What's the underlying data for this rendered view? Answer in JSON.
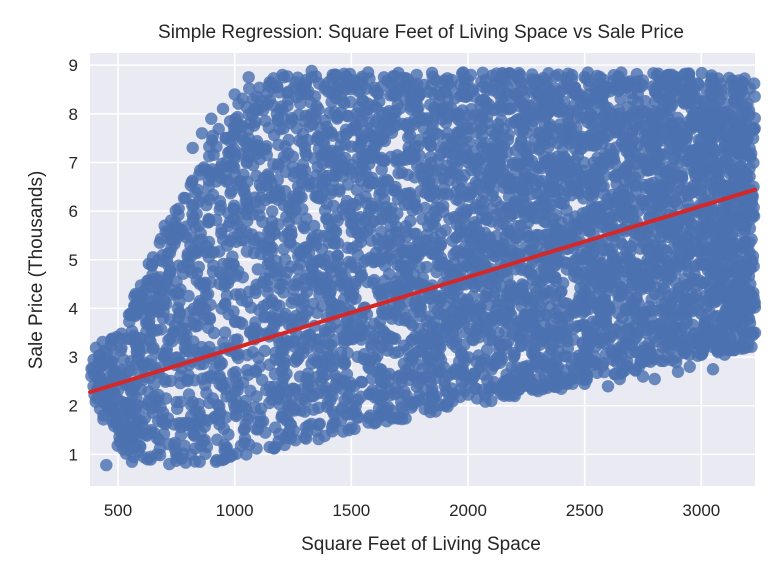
{
  "chart_data": {
    "type": "scatter",
    "title": "Simple Regression: Square Feet of Living Space vs Sale Price",
    "xlabel": "Square Feet of Living Space",
    "ylabel": "Sale Price (Thousands)",
    "xlim": [
      380,
      3230
    ],
    "ylim": [
      0.35,
      9.25
    ],
    "xticks": [
      500,
      1000,
      1500,
      2000,
      2500,
      3000
    ],
    "yticks": [
      1,
      2,
      3,
      4,
      5,
      6,
      7,
      8,
      9
    ],
    "grid": true,
    "background": "#eaeaf2",
    "point_color": "#4c72b0",
    "line_color": "#d62728",
    "regression_line": {
      "x": [
        380,
        3230
      ],
      "y": [
        2.28,
        6.44
      ]
    },
    "point_cloud": [
      {
        "x": 400,
        "y_min": 2.1,
        "y_max": 3.2
      },
      {
        "x": 500,
        "y_min": 1.0,
        "y_max": 3.6
      },
      {
        "x": 600,
        "y_min": 0.9,
        "y_max": 4.6
      },
      {
        "x": 700,
        "y_min": 0.85,
        "y_max": 5.6
      },
      {
        "x": 800,
        "y_min": 0.85,
        "y_max": 6.6
      },
      {
        "x": 900,
        "y_min": 0.85,
        "y_max": 7.6
      },
      {
        "x": 1000,
        "y_min": 0.9,
        "y_max": 8.3
      },
      {
        "x": 1100,
        "y_min": 1.0,
        "y_max": 8.7
      },
      {
        "x": 1200,
        "y_min": 1.1,
        "y_max": 8.8
      },
      {
        "x": 1400,
        "y_min": 1.35,
        "y_max": 8.85
      },
      {
        "x": 1600,
        "y_min": 1.6,
        "y_max": 8.85
      },
      {
        "x": 1800,
        "y_min": 1.8,
        "y_max": 8.85
      },
      {
        "x": 2000,
        "y_min": 2.0,
        "y_max": 8.85
      },
      {
        "x": 2200,
        "y_min": 2.2,
        "y_max": 8.85
      },
      {
        "x": 2400,
        "y_min": 2.4,
        "y_max": 8.85
      },
      {
        "x": 2600,
        "y_min": 2.6,
        "y_max": 8.85
      },
      {
        "x": 2800,
        "y_min": 2.8,
        "y_max": 8.85
      },
      {
        "x": 3000,
        "y_min": 3.0,
        "y_max": 8.85
      },
      {
        "x": 3230,
        "y_min": 3.2,
        "y_max": 8.7
      }
    ],
    "sample_points": [
      [
        450,
        0.78
      ],
      [
        560,
        0.85
      ],
      [
        640,
        0.95
      ],
      [
        720,
        0.8
      ],
      [
        790,
        0.83
      ],
      [
        850,
        0.85
      ],
      [
        920,
        0.85
      ],
      [
        980,
        0.95
      ],
      [
        420,
        2.45
      ],
      [
        430,
        2.9
      ],
      [
        395,
        2.4
      ],
      [
        470,
        3.25
      ],
      [
        520,
        2.5
      ],
      [
        440,
        2.3
      ],
      [
        460,
        1.9
      ],
      [
        500,
        1.6
      ],
      [
        505,
        1.5
      ],
      [
        555,
        3.9
      ],
      [
        570,
        4.05
      ],
      [
        590,
        4.2
      ],
      [
        620,
        4.3
      ],
      [
        650,
        5.05
      ],
      [
        700,
        5.7
      ],
      [
        730,
        5.4
      ],
      [
        760,
        6.05
      ],
      [
        1060,
        8.75
      ],
      [
        1150,
        8.65
      ],
      [
        1210,
        8.75
      ],
      [
        1330,
        8.88
      ],
      [
        1420,
        8.8
      ],
      [
        1640,
        8.75
      ],
      [
        1780,
        8.8
      ],
      [
        1980,
        8.85
      ],
      [
        1000,
        8.4
      ],
      [
        950,
        8.1
      ],
      [
        900,
        7.9
      ],
      [
        1080,
        8.3
      ],
      [
        860,
        7.6
      ],
      [
        820,
        7.3
      ],
      [
        3050,
        2.75
      ],
      [
        3100,
        3.05
      ],
      [
        3150,
        3.2
      ],
      [
        3200,
        3.3
      ],
      [
        2800,
        2.55
      ],
      [
        2750,
        2.6
      ],
      [
        2950,
        2.8
      ],
      [
        2600,
        2.4
      ],
      [
        2400,
        2.35
      ],
      [
        2500,
        2.45
      ],
      [
        2200,
        2.2
      ],
      [
        2100,
        2.1
      ],
      [
        1900,
        2.0
      ],
      [
        1700,
        1.75
      ],
      [
        1500,
        1.55
      ],
      [
        1300,
        1.35
      ],
      [
        1150,
        1.15
      ],
      [
        1050,
        1.0
      ],
      [
        2300,
        2.3
      ],
      [
        2900,
        2.7
      ],
      [
        2650,
        2.55
      ],
      [
        3180,
        4.0
      ],
      [
        3210,
        4.5
      ],
      [
        3230,
        3.5
      ]
    ]
  }
}
